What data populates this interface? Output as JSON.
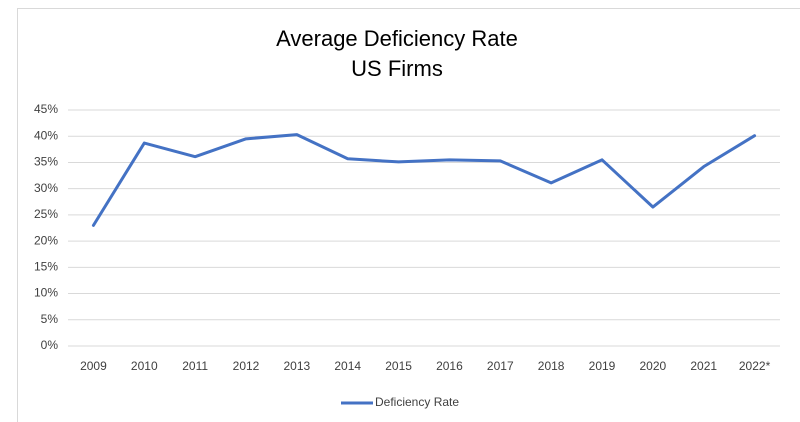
{
  "chart_data": {
    "type": "line",
    "title": "Average Deficiency Rate",
    "subtitle": "US Firms",
    "categories": [
      "2009",
      "2010",
      "2011",
      "2012",
      "2013",
      "2014",
      "2015",
      "2016",
      "2017",
      "2018",
      "2019",
      "2020",
      "2021",
      "2022*"
    ],
    "series": [
      {
        "name": "Deficiency Rate",
        "color": "#4472c4",
        "values": [
          23,
          38.7,
          36.1,
          39.5,
          40.3,
          35.7,
          35.1,
          35.5,
          35.3,
          31.1,
          35.5,
          26.5,
          34.2,
          40.1
        ]
      }
    ],
    "ylim": [
      0,
      45
    ],
    "yticks": [
      {
        "value": 0,
        "label": "0%"
      },
      {
        "value": 5,
        "label": "5%"
      },
      {
        "value": 10,
        "label": "10%"
      },
      {
        "value": 15,
        "label": "15%"
      },
      {
        "value": 20,
        "label": "20%"
      },
      {
        "value": 25,
        "label": "25%"
      },
      {
        "value": 30,
        "label": "30%"
      },
      {
        "value": 35,
        "label": "35%"
      },
      {
        "value": 40,
        "label": "40%"
      },
      {
        "value": 45,
        "label": "45%"
      }
    ],
    "grid": true,
    "legend": "bottom"
  }
}
